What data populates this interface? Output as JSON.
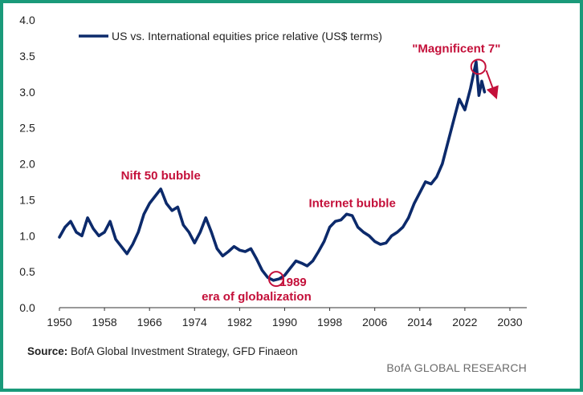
{
  "chart_data": {
    "type": "line",
    "legend": "US vs. International equities price relative (US$ terms)",
    "legend_position": "top-left",
    "series_color": "#0c2a6b",
    "annotation_color": "#c4103a",
    "xlim": [
      1950,
      2033
    ],
    "ylim": [
      0.0,
      4.0
    ],
    "x_ticks": [
      "1950",
      "1958",
      "1966",
      "1974",
      "1982",
      "1990",
      "1998",
      "2006",
      "2014",
      "2022",
      "2030"
    ],
    "y_ticks": [
      "0.0",
      "0.5",
      "1.0",
      "1.5",
      "2.0",
      "2.5",
      "3.0",
      "3.5",
      "4.0"
    ],
    "grid": false,
    "series": [
      {
        "x": [
          1950,
          1951,
          1952,
          1953,
          1954,
          1955,
          1956,
          1957,
          1958,
          1959,
          1960,
          1961,
          1962,
          1963,
          1964,
          1965,
          1966,
          1967,
          1968,
          1969,
          1970,
          1971,
          1972,
          1973,
          1974,
          1975,
          1976,
          1977,
          1978,
          1979,
          1980,
          1981,
          1982,
          1983,
          1984,
          1985,
          1986,
          1987,
          1988,
          1989,
          1990,
          1991,
          1992,
          1993,
          1994,
          1995,
          1996,
          1997,
          1998,
          1999,
          2000,
          2001,
          2002,
          2003,
          2004,
          2005,
          2006,
          2007,
          2008,
          2009,
          2010,
          2011,
          2012,
          2013,
          2014,
          2015,
          2016,
          2017,
          2018,
          2019,
          2020,
          2021,
          2022,
          2023,
          2024,
          2024.5,
          2025,
          2025.5
        ],
        "y": [
          0.98,
          1.12,
          1.2,
          1.05,
          1.0,
          1.25,
          1.1,
          1.0,
          1.05,
          1.2,
          0.95,
          0.85,
          0.75,
          0.88,
          1.05,
          1.3,
          1.45,
          1.55,
          1.65,
          1.45,
          1.35,
          1.4,
          1.15,
          1.05,
          0.9,
          1.05,
          1.25,
          1.05,
          0.82,
          0.72,
          0.78,
          0.85,
          0.8,
          0.78,
          0.82,
          0.68,
          0.52,
          0.42,
          0.38,
          0.4,
          0.45,
          0.55,
          0.65,
          0.62,
          0.58,
          0.65,
          0.78,
          0.92,
          1.12,
          1.2,
          1.22,
          1.3,
          1.28,
          1.12,
          1.05,
          1.0,
          0.92,
          0.88,
          0.9,
          1.0,
          1.05,
          1.12,
          1.25,
          1.45,
          1.6,
          1.75,
          1.72,
          1.82,
          2.0,
          2.3,
          2.6,
          2.9,
          2.75,
          3.05,
          3.42,
          2.95,
          3.15,
          3.0
        ]
      }
    ],
    "annotations": [
      {
        "text": "Nift 50 bubble",
        "x": 1968,
        "y": 1.78
      },
      {
        "text": "Internet bubble",
        "x": 2002,
        "y": 1.4
      },
      {
        "text": "\"Magnificent 7\"",
        "x": 2020.5,
        "y": 3.55
      },
      {
        "text": "1989",
        "x": 1991.5,
        "y": 0.3
      },
      {
        "text": "era of globalization",
        "x": 1985,
        "y": 0.1
      }
    ],
    "markers": [
      {
        "type": "circle",
        "x": 1988.5,
        "y": 0.4
      },
      {
        "type": "circle",
        "x": 2024.4,
        "y": 3.35
      },
      {
        "type": "arrow",
        "x1": 2025.8,
        "y1": 3.3,
        "x2": 2027.3,
        "y2": 2.98
      }
    ]
  },
  "footer": {
    "source_label": "Source:",
    "source_text": "BofA Global Investment Strategy, GFD Finaeon",
    "brand": "BofA GLOBAL RESEARCH"
  }
}
